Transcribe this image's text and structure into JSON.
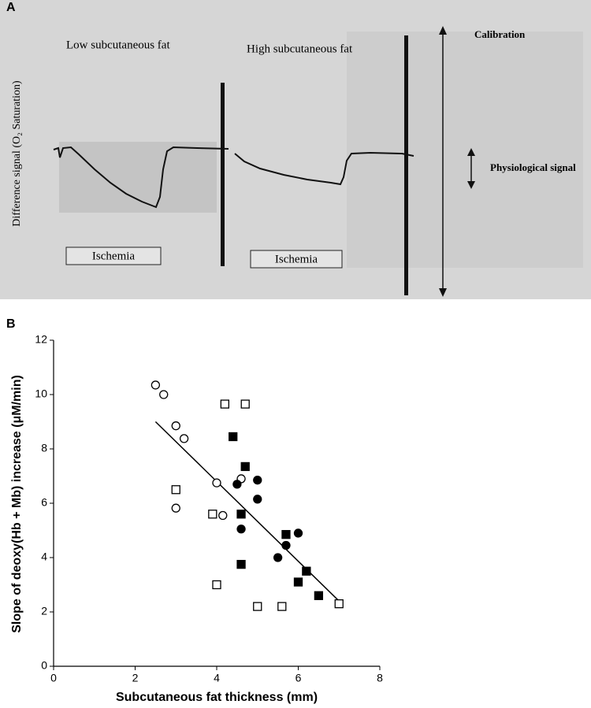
{
  "panel_a": {
    "letter": "A",
    "low_label": "Low subcutaneous fat",
    "high_label": "High subcutaneous fat",
    "ischemia_1": "Ischemia",
    "ischemia_2": "Ischemia",
    "y_label": "Difference signal (O₂ Saturation)",
    "calibration": "Calibration",
    "physiological": "Physiological signal"
  },
  "chart_data": {
    "type": "scatter",
    "panel_letter": "B",
    "x_label": "Subcutaneous fat thickness (mm)",
    "y_label": "Slope of deoxy(Hb + Mb) increase (μM/min)",
    "xlim": [
      0,
      8
    ],
    "xticks": [
      0,
      2,
      4,
      6,
      8
    ],
    "ylim": [
      0,
      12
    ],
    "yticks": [
      0,
      2,
      4,
      6,
      8,
      10,
      12
    ],
    "series": [
      {
        "marker": "circle",
        "filled": false,
        "color": "#000000",
        "x": [
          2.5,
          2.7,
          3.0,
          3.2,
          3.0,
          4.0,
          4.15,
          4.6
        ],
        "values": [
          10.35,
          10.0,
          8.85,
          8.38,
          5.82,
          6.75,
          5.55,
          6.9
        ]
      },
      {
        "marker": "square",
        "filled": false,
        "color": "#000000",
        "x": [
          4.2,
          4.7,
          3.0,
          3.9,
          4.0,
          5.0,
          5.6,
          7.0
        ],
        "values": [
          9.65,
          9.65,
          6.5,
          5.6,
          3.0,
          2.2,
          2.2,
          2.3
        ]
      },
      {
        "marker": "square",
        "filled": true,
        "color": "#000000",
        "x": [
          4.4,
          4.7,
          4.6,
          4.6,
          5.7,
          6.2,
          6.0,
          6.5
        ],
        "values": [
          8.45,
          7.35,
          5.6,
          3.75,
          4.85,
          3.5,
          3.1,
          2.6
        ]
      },
      {
        "marker": "circle",
        "filled": true,
        "color": "#000000",
        "x": [
          4.5,
          5.0,
          5.0,
          4.6,
          5.7,
          6.0,
          5.5
        ],
        "values": [
          6.7,
          6.85,
          6.15,
          5.05,
          4.45,
          4.9,
          4.0
        ]
      }
    ],
    "fit": {
      "x": [
        2.5,
        7.0
      ],
      "values": [
        9.0,
        2.4
      ]
    }
  }
}
